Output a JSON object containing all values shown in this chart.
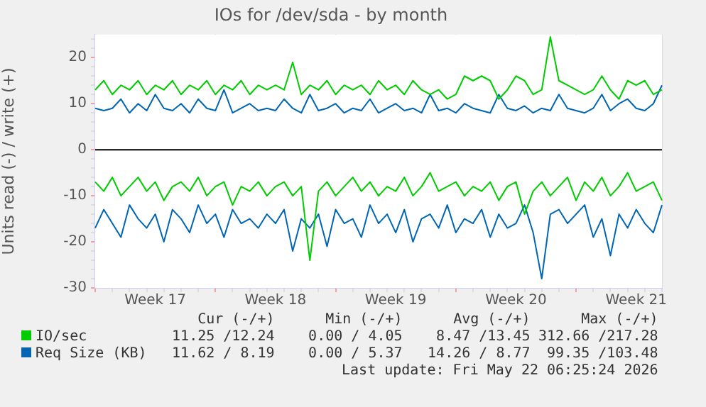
{
  "chart_data": {
    "type": "line",
    "title": "IOs for /dev/sda - by month",
    "ylabel": "Units read (-) / write (+)",
    "categories": [
      null,
      null,
      null,
      null,
      null,
      null,
      null,
      "Week 17",
      null,
      null,
      null,
      null,
      null,
      null,
      null,
      null,
      null,
      null,
      null,
      null,
      null,
      "Week 18",
      null,
      null,
      null,
      null,
      null,
      null,
      null,
      null,
      null,
      null,
      null,
      null,
      null,
      "Week 19",
      null,
      null,
      null,
      null,
      null,
      null,
      null,
      null,
      null,
      null,
      null,
      null,
      null,
      "Week 20",
      null,
      null,
      null,
      null,
      null,
      null,
      null,
      null,
      null,
      null,
      null,
      null,
      null,
      "Week 21",
      null,
      null,
      null
    ],
    "series": [
      {
        "name": "IO/sec",
        "color": "#00cc00",
        "values": [
          13,
          15,
          12,
          14,
          13,
          15,
          12,
          14,
          13,
          15,
          12,
          14,
          13,
          15,
          12,
          14,
          13,
          15,
          12,
          14,
          13,
          14,
          13,
          19,
          12,
          14,
          13,
          15,
          12,
          14,
          13,
          14,
          12,
          15,
          13,
          14,
          12,
          15,
          13,
          12,
          13,
          11,
          12,
          16,
          15,
          16,
          15,
          11,
          13,
          16,
          15,
          12,
          13,
          24.5,
          15,
          14,
          13,
          12,
          13,
          16,
          13,
          11,
          15,
          14,
          15,
          12,
          13
        ]
      },
      {
        "color": "#00cc00",
        "values": [
          -7,
          -9,
          -6,
          -10,
          -8,
          -6,
          -9,
          -7,
          -11,
          -8,
          -7,
          -9,
          -6,
          -10,
          -8,
          -7,
          -12,
          -8,
          -9,
          -7,
          -10,
          -8,
          -7,
          -10,
          -8,
          -24,
          -9,
          -7,
          -10,
          -8,
          -6,
          -9,
          -7,
          -10,
          -8,
          -9,
          -6,
          -10,
          -8,
          -5,
          -9,
          -8,
          -7,
          -10,
          -8,
          -9,
          -7,
          -11,
          -8,
          -7,
          -14,
          -9,
          -7,
          -10,
          -8,
          -6,
          -11,
          -7,
          -9,
          -6,
          -10,
          -8,
          -5,
          -9,
          -8,
          -7,
          -11
        ]
      },
      {
        "name": "Req Size (KB)",
        "color": "#0066b3",
        "values": [
          9,
          8.5,
          9,
          11,
          8,
          10,
          8.5,
          12,
          9,
          8.5,
          10,
          8,
          11,
          9,
          8.5,
          13,
          8,
          9,
          10,
          8.5,
          9,
          8.5,
          11,
          9,
          8,
          12,
          8.5,
          9,
          10,
          8,
          9,
          8.5,
          11,
          8,
          9,
          10,
          8.5,
          9,
          8,
          12,
          8.5,
          9,
          8,
          10,
          9,
          8.5,
          8,
          12,
          9,
          8.5,
          9.5,
          8,
          9,
          8.5,
          12,
          9,
          8.5,
          8,
          9,
          12,
          8.5,
          10,
          11,
          9,
          8.5,
          10,
          14
        ]
      },
      {
        "color": "#0066b3",
        "values": [
          -17,
          -13,
          -16,
          -19,
          -12,
          -15,
          -17,
          -14,
          -20,
          -13,
          -15,
          -18,
          -12,
          -16,
          -14,
          -19,
          -13,
          -16,
          -15,
          -17,
          -14,
          -16,
          -13,
          -22,
          -15,
          -17,
          -14,
          -21,
          -13,
          -16,
          -15,
          -19,
          -12,
          -16,
          -14,
          -18,
          -13,
          -20,
          -15,
          -14,
          -17,
          -12,
          -18,
          -15,
          -16,
          -13,
          -19,
          -14,
          -17,
          -16,
          -12,
          -18,
          -28,
          -14,
          -13,
          -16,
          -14,
          -12,
          -19,
          -15,
          -23,
          -14,
          -17,
          -13,
          -16,
          -18,
          -12
        ]
      }
    ],
    "ylim": [
      -30,
      25
    ],
    "yticks": [
      -30,
      {
        "value": -28,
        "label": null
      },
      {
        "value": -26,
        "label": null
      },
      {
        "value": -24,
        "label": null
      },
      {
        "value": -22,
        "label": null
      },
      -20,
      {
        "value": -18,
        "label": null
      },
      {
        "value": -16,
        "label": null
      },
      {
        "value": -14,
        "label": null
      },
      {
        "value": -12,
        "label": null
      },
      -10,
      {
        "value": -8,
        "label": null
      },
      {
        "value": -6,
        "label": null
      },
      {
        "value": -4,
        "label": null
      },
      {
        "value": -2,
        "label": null
      },
      0,
      {
        "value": 2,
        "label": null
      },
      {
        "value": 4,
        "label": null
      },
      {
        "value": 6,
        "label": null
      },
      {
        "value": 8,
        "label": null
      },
      10,
      {
        "value": 12,
        "label": null
      },
      {
        "value": 14,
        "label": null
      },
      {
        "value": 16,
        "label": null
      },
      {
        "value": 18,
        "label": null
      },
      20,
      {
        "value": 22,
        "label": null
      },
      {
        "value": 24,
        "label": null
      }
    ],
    "grid": true,
    "legend": "bottom",
    "ref_lines": [
      {
        "axis": "y",
        "value": 0,
        "color": "#000000"
      }
    ],
    "annotations": [
      "Cur (-/+)",
      "Min (-/+)",
      "Avg (-/+)",
      "Max (-/+)",
      "11.25 /12.24",
      "0.00 / 4.05",
      "8.47 /13.45",
      "312.66 /217.28",
      "11.62 / 8.19",
      "0.00 / 5.37",
      "14.26 / 8.77",
      "99.35 /103.48",
      "Last update: Fri May 22 06:25:24 2026"
    ]
  }
}
